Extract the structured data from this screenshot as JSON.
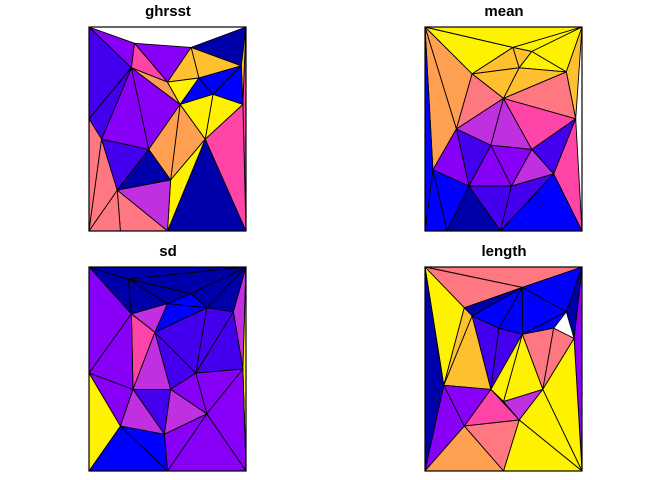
{
  "palette": {
    "dark_blue": "#0000AA",
    "blue": "#0000FF",
    "indigo": "#4400EE",
    "violet": "#8800F8",
    "magenta": "#C030E0",
    "pink": "#FF44A8",
    "salmon": "#FF7780",
    "orange": "#FFA050",
    "gold": "#FFC030",
    "yellow": "#FFF200"
  },
  "chart_data": [
    {
      "type": "map",
      "title": "ghrsst",
      "mesh": {
        "points": [
          [
            0,
            0
          ],
          [
            0.29,
            0.08
          ],
          [
            0.65,
            0.1
          ],
          [
            1,
            0
          ],
          [
            0.27,
            0.2
          ],
          [
            0.5,
            0.27
          ],
          [
            0.7,
            0.25
          ],
          [
            0.97,
            0.19
          ],
          [
            0,
            0.45
          ],
          [
            0.98,
            0.38
          ],
          [
            0.58,
            0.38
          ],
          [
            0.79,
            0.33
          ],
          [
            0.08,
            0.55
          ],
          [
            0.38,
            0.6
          ],
          [
            0.74,
            0.55
          ],
          [
            0.18,
            0.8
          ],
          [
            0.52,
            0.75
          ],
          [
            0,
            1
          ],
          [
            1,
            1
          ],
          [
            0.5,
            1
          ],
          [
            0.2,
            1
          ]
        ],
        "triangles": [
          [
            0,
            1,
            4
          ],
          [
            1,
            2,
            5
          ],
          [
            1,
            5,
            4
          ],
          [
            2,
            3,
            7
          ],
          [
            2,
            7,
            6
          ],
          [
            2,
            6,
            5
          ],
          [
            3,
            7,
            9
          ],
          [
            3,
            9,
            18
          ],
          [
            0,
            4,
            8
          ],
          [
            4,
            5,
            10
          ],
          [
            4,
            10,
            13
          ],
          [
            4,
            13,
            12
          ],
          [
            4,
            12,
            8
          ],
          [
            5,
            6,
            10
          ],
          [
            6,
            11,
            10
          ],
          [
            6,
            7,
            11
          ],
          [
            7,
            9,
            11
          ],
          [
            9,
            14,
            11
          ],
          [
            10,
            11,
            14
          ],
          [
            10,
            14,
            16
          ],
          [
            10,
            16,
            13
          ],
          [
            9,
            18,
            14
          ],
          [
            8,
            12,
            17
          ],
          [
            12,
            15,
            17
          ],
          [
            12,
            13,
            15
          ],
          [
            13,
            16,
            15
          ],
          [
            14,
            18,
            19
          ],
          [
            14,
            19,
            16
          ],
          [
            16,
            19,
            15
          ],
          [
            15,
            19,
            20
          ],
          [
            15,
            20,
            17
          ]
        ]
      },
      "triangle_colors": [
        "violet",
        "violet",
        "pink",
        "dark_blue",
        "gold",
        "gold",
        "gold",
        "pink",
        "indigo",
        "orange",
        "violet",
        "violet",
        "indigo",
        "yellow",
        "blue",
        "blue",
        "blue",
        "yellow",
        "yellow",
        "orange",
        "orange",
        "pink",
        "salmon",
        "salmon",
        "indigo",
        "dark_blue",
        "dark_blue",
        "yellow",
        "magenta",
        "salmon",
        "salmon"
      ]
    },
    {
      "type": "map",
      "title": "mean",
      "mesh": {
        "points": [
          [
            0,
            0
          ],
          [
            0.68,
            0.12
          ],
          [
            1,
            0
          ],
          [
            0.3,
            0.23
          ],
          [
            0.56,
            0.1
          ],
          [
            0.5,
            0.35
          ],
          [
            0.9,
            0.22
          ],
          [
            0.6,
            0.2
          ],
          [
            0.2,
            0.5
          ],
          [
            0.96,
            0.45
          ],
          [
            0.42,
            0.58
          ],
          [
            0.68,
            0.6
          ],
          [
            0.05,
            0.7
          ],
          [
            0.28,
            0.78
          ],
          [
            0.55,
            0.78
          ],
          [
            0.82,
            0.72
          ],
          [
            0,
            1
          ],
          [
            1,
            1
          ],
          [
            0.48,
            1
          ],
          [
            0.14,
            1
          ]
        ],
        "triangles": [
          [
            0,
            4,
            3
          ],
          [
            0,
            2,
            4
          ],
          [
            2,
            4,
            1
          ],
          [
            1,
            6,
            2
          ],
          [
            0,
            3,
            8
          ],
          [
            3,
            4,
            7
          ],
          [
            3,
            7,
            5
          ],
          [
            1,
            7,
            4
          ],
          [
            1,
            6,
            7
          ],
          [
            6,
            2,
            9
          ],
          [
            7,
            6,
            5
          ],
          [
            5,
            6,
            9
          ],
          [
            3,
            5,
            8
          ],
          [
            5,
            10,
            8
          ],
          [
            5,
            11,
            10
          ],
          [
            5,
            9,
            11
          ],
          [
            0,
            8,
            12
          ],
          [
            8,
            10,
            13
          ],
          [
            8,
            13,
            12
          ],
          [
            10,
            14,
            13
          ],
          [
            10,
            11,
            14
          ],
          [
            11,
            9,
            15
          ],
          [
            11,
            15,
            14
          ],
          [
            9,
            17,
            15
          ],
          [
            12,
            13,
            19
          ],
          [
            12,
            19,
            16
          ],
          [
            13,
            14,
            18
          ],
          [
            13,
            18,
            19
          ],
          [
            14,
            15,
            18
          ],
          [
            15,
            17,
            18
          ],
          [
            0,
            12,
            16
          ]
        ]
      },
      "triangle_colors": [
        "yellow",
        "yellow",
        "yellow",
        "yellow",
        "orange",
        "gold",
        "gold",
        "gold",
        "yellow",
        "gold",
        "gold",
        "salmon",
        "salmon",
        "magenta",
        "magenta",
        "pink",
        "orange",
        "indigo",
        "violet",
        "violet",
        "violet",
        "indigo",
        "magenta",
        "pink",
        "blue",
        "blue",
        "indigo",
        "dark_blue",
        "indigo",
        "blue",
        "blue"
      ]
    },
    {
      "type": "map",
      "title": "sd",
      "mesh": {
        "points": [
          [
            0,
            0
          ],
          [
            0.25,
            0.06
          ],
          [
            0.65,
            0.13
          ],
          [
            1,
            0
          ],
          [
            0.27,
            0.23
          ],
          [
            0.5,
            0.18
          ],
          [
            0.75,
            0.2
          ],
          [
            0.92,
            0.22
          ],
          [
            0,
            0.52
          ],
          [
            0.98,
            0.5
          ],
          [
            0.42,
            0.32
          ],
          [
            0.52,
            0.6
          ],
          [
            0.68,
            0.52
          ],
          [
            0.28,
            0.6
          ],
          [
            0.75,
            0.72
          ],
          [
            0.2,
            0.78
          ],
          [
            0.48,
            0.82
          ],
          [
            0,
            1
          ],
          [
            1,
            1
          ],
          [
            0.5,
            1
          ]
        ],
        "triangles": [
          [
            0,
            1,
            4
          ],
          [
            0,
            3,
            1
          ],
          [
            1,
            3,
            2
          ],
          [
            1,
            2,
            5
          ],
          [
            1,
            5,
            4
          ],
          [
            2,
            3,
            6
          ],
          [
            3,
            7,
            6
          ],
          [
            3,
            9,
            7
          ],
          [
            3,
            18,
            9
          ],
          [
            0,
            4,
            8
          ],
          [
            4,
            5,
            10
          ],
          [
            5,
            2,
            6
          ],
          [
            5,
            6,
            10
          ],
          [
            6,
            7,
            12
          ],
          [
            6,
            12,
            10
          ],
          [
            7,
            9,
            12
          ],
          [
            4,
            10,
            13
          ],
          [
            4,
            13,
            8
          ],
          [
            10,
            12,
            11
          ],
          [
            10,
            11,
            13
          ],
          [
            12,
            9,
            14
          ],
          [
            12,
            14,
            11
          ],
          [
            8,
            13,
            15
          ],
          [
            13,
            11,
            16
          ],
          [
            13,
            16,
            15
          ],
          [
            11,
            14,
            16
          ],
          [
            9,
            18,
            14
          ],
          [
            14,
            18,
            19
          ],
          [
            14,
            19,
            16
          ],
          [
            15,
            16,
            19
          ],
          [
            15,
            19,
            17
          ],
          [
            8,
            15,
            17
          ]
        ]
      },
      "triangle_colors": [
        "dark_blue",
        "dark_blue",
        "dark_blue",
        "dark_blue",
        "dark_blue",
        "dark_blue",
        "dark_blue",
        "magenta",
        "yellow",
        "violet",
        "magenta",
        "blue",
        "blue",
        "indigo",
        "indigo",
        "indigo",
        "pink",
        "violet",
        "indigo",
        "magenta",
        "violet",
        "violet",
        "violet",
        "indigo",
        "magenta",
        "magenta",
        "violet",
        "violet",
        "violet",
        "blue",
        "blue",
        "yellow"
      ]
    },
    {
      "type": "map",
      "title": "length",
      "mesh": {
        "points": [
          [
            0,
            0
          ],
          [
            0.62,
            0.1
          ],
          [
            1,
            0
          ],
          [
            0.25,
            0.2
          ],
          [
            0.3,
            0.24
          ],
          [
            0.47,
            0.3
          ],
          [
            0.62,
            0.33
          ],
          [
            0.9,
            0.22
          ],
          [
            0.95,
            0.35
          ],
          [
            0.12,
            0.58
          ],
          [
            0.5,
            0.66
          ],
          [
            0.6,
            0.75
          ],
          [
            0.75,
            0.6
          ],
          [
            0.25,
            0.78
          ],
          [
            0,
            1
          ],
          [
            1,
            1
          ],
          [
            0.5,
            1
          ],
          [
            0.42,
            0.6
          ],
          [
            0.82,
            0.3
          ]
        ],
        "triangles": [
          [
            0,
            2,
            1
          ],
          [
            0,
            1,
            3
          ],
          [
            1,
            2,
            7
          ],
          [
            1,
            7,
            6
          ],
          [
            3,
            1,
            4
          ],
          [
            4,
            1,
            5
          ],
          [
            5,
            1,
            6
          ],
          [
            6,
            7,
            18
          ],
          [
            7,
            2,
            8
          ],
          [
            2,
            15,
            8
          ],
          [
            0,
            3,
            9
          ],
          [
            0,
            9,
            14
          ],
          [
            3,
            4,
            9
          ],
          [
            4,
            5,
            17
          ],
          [
            4,
            17,
            9
          ],
          [
            5,
            6,
            17
          ],
          [
            6,
            18,
            12
          ],
          [
            18,
            8,
            12
          ],
          [
            6,
            12,
            10
          ],
          [
            6,
            10,
            17
          ],
          [
            8,
            15,
            12
          ],
          [
            9,
            17,
            13
          ],
          [
            9,
            13,
            14
          ],
          [
            17,
            10,
            11
          ],
          [
            17,
            11,
            13
          ],
          [
            10,
            12,
            11
          ],
          [
            12,
            15,
            11
          ],
          [
            11,
            15,
            16
          ],
          [
            11,
            16,
            13
          ],
          [
            13,
            16,
            14
          ]
        ]
      },
      "triangle_colors": [
        "salmon",
        "salmon",
        "blue",
        "blue",
        "dark_blue",
        "blue",
        "blue",
        "blue",
        "dark_blue",
        "violet",
        "yellow",
        "dark_blue",
        "gold",
        "indigo",
        "gold",
        "indigo",
        "salmon",
        "salmon",
        "yellow",
        "yellow",
        "yellow",
        "violet",
        "violet",
        "salmon",
        "pink",
        "magenta",
        "yellow",
        "yellow",
        "salmon",
        "orange"
      ]
    }
  ]
}
